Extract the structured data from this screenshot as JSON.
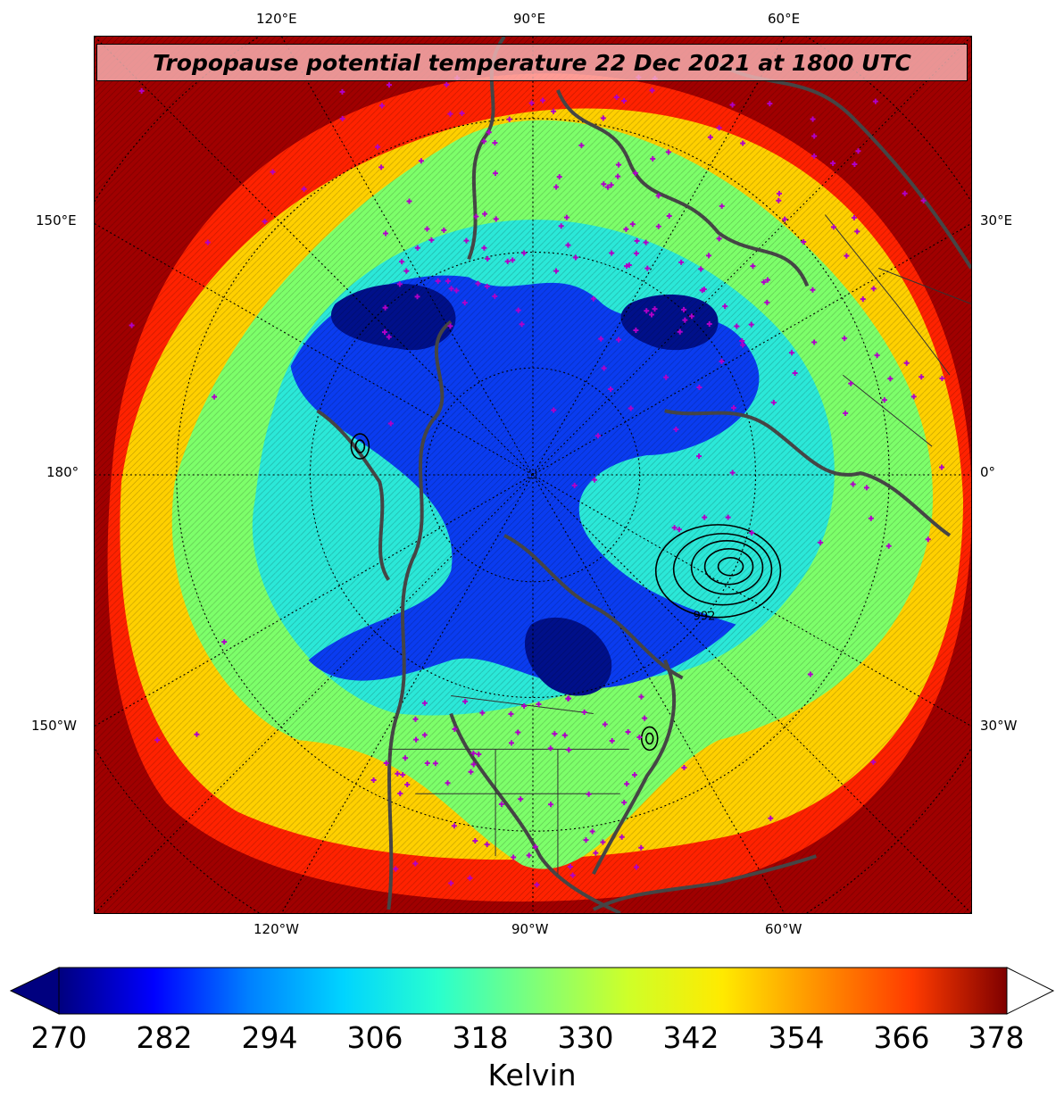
{
  "title": "Tropopause potential temperature 22 Dec 2021 at 1800 UTC",
  "longitude_labels": {
    "top": [
      "120°E",
      "90°E",
      "60°E"
    ],
    "bottom": [
      "120°W",
      "90°W",
      "60°W"
    ],
    "left": [
      "150°E",
      "180°",
      "150°W"
    ],
    "right": [
      "30°E",
      "0°",
      "30°W"
    ]
  },
  "pressure_label": "992",
  "colorbar": {
    "ticks": [
      "270",
      "282",
      "294",
      "306",
      "318",
      "330",
      "342",
      "354",
      "366",
      "378"
    ],
    "label": "Kelvin",
    "colors": [
      "#00007f",
      "#0000ff",
      "#0080ff",
      "#00d4ff",
      "#29ffce",
      "#7dff7a",
      "#ceff29",
      "#ffea00",
      "#ff9100",
      "#ff3b00",
      "#7f0000"
    ]
  }
}
